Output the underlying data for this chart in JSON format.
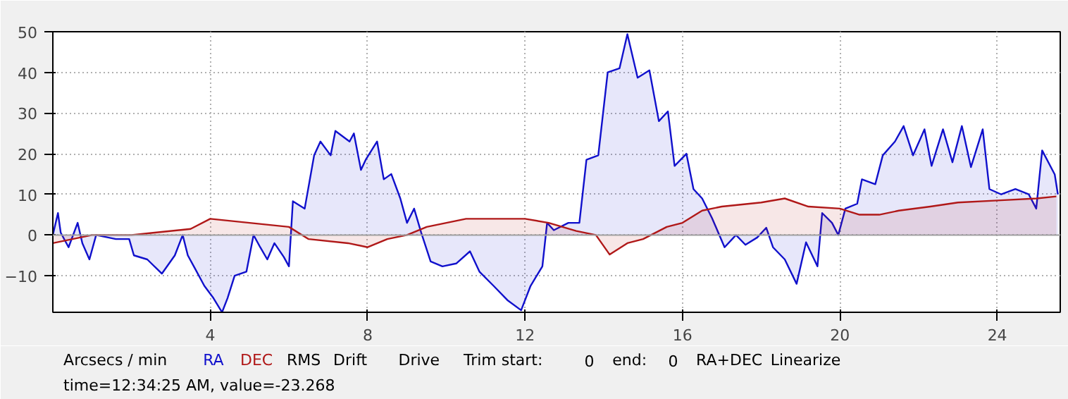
{
  "chart_data": {
    "type": "area",
    "xlim": [
      0,
      25.6
    ],
    "ylim": [
      -19,
      50
    ],
    "xticks": [
      4,
      8,
      12,
      16,
      20,
      24
    ],
    "yticks": [
      -10,
      0,
      10,
      20,
      30,
      40,
      50
    ],
    "grid": true,
    "ref_lines": [
      {
        "axis": "y",
        "value": 0,
        "label": null,
        "color": "#a0a0a0"
      }
    ],
    "series": [
      {
        "name": "RA",
        "color": "#1010cc",
        "x": [
          0,
          0.13,
          0.2,
          0.4,
          0.63,
          0.75,
          0.93,
          1.1,
          1.6,
          1.94,
          2.06,
          2.4,
          2.77,
          3.1,
          3.3,
          3.43,
          3.6,
          3.85,
          4.08,
          4.3,
          4.44,
          4.62,
          4.92,
          5.1,
          5.27,
          5.45,
          5.63,
          5.87,
          6,
          6.1,
          6.4,
          6.64,
          6.8,
          7.06,
          7.18,
          7.54,
          7.65,
          7.83,
          7.95,
          8.24,
          8.41,
          8.6,
          8.83,
          9,
          9.18,
          9.36,
          9.6,
          9.9,
          10.25,
          10.6,
          10.84,
          11.2,
          11.55,
          11.9,
          12.14,
          12.44,
          12.56,
          12.73,
          13.1,
          13.38,
          13.56,
          13.86,
          14.1,
          14.4,
          14.6,
          14.86,
          15.16,
          15.4,
          15.63,
          15.8,
          16.1,
          16.28,
          16.5,
          16.75,
          17.07,
          17.36,
          17.6,
          17.9,
          18.13,
          18.3,
          18.6,
          18.9,
          19.14,
          19.43,
          19.55,
          19.8,
          19.96,
          20.14,
          20.44,
          20.56,
          20.9,
          21.09,
          21.4,
          21.62,
          21.86,
          22.15,
          22.33,
          22.62,
          22.86,
          23.1,
          23.33,
          23.63,
          23.8,
          24.1,
          24.46,
          24.8,
          24.99,
          25.14,
          25.46,
          25.54
        ],
        "values": [
          0,
          5.4,
          0.6,
          -3,
          3,
          -2,
          -6,
          0,
          -1,
          -1,
          -5,
          -6,
          -9.5,
          -5,
          0,
          -5,
          -8,
          -12.5,
          -15.5,
          -19,
          -15.5,
          -10,
          -9,
          0,
          -3,
          -6,
          -2,
          -5.4,
          -7.7,
          8.3,
          6.5,
          19.6,
          23,
          19.6,
          25.6,
          23,
          25,
          16,
          18.5,
          23,
          13.7,
          15,
          9,
          3,
          6.5,
          0.6,
          -6.5,
          -7.7,
          -7,
          -4,
          -9,
          -12.5,
          -16,
          -18.5,
          -12.5,
          -7.7,
          3,
          1.2,
          3,
          3,
          18.5,
          19.6,
          40,
          41,
          49.4,
          38.7,
          40.5,
          28,
          30.4,
          17,
          20,
          11.3,
          9,
          4.2,
          -3,
          0,
          -2.4,
          -0.6,
          1.8,
          -3,
          -6,
          -12,
          -1.8,
          -7.7,
          5.4,
          3,
          0,
          6.5,
          7.7,
          13.7,
          12.5,
          19.6,
          23,
          26.8,
          19.6,
          26,
          17,
          26,
          17.9,
          26.8,
          16.7,
          26,
          11.3,
          10,
          11.3,
          10,
          6.5,
          20.8,
          14.9,
          10
        ]
      },
      {
        "name": "DEC",
        "color": "#b01818",
        "x": [
          0,
          1,
          2,
          2.5,
          3.5,
          4,
          5,
          6,
          6.5,
          7.5,
          8,
          8.5,
          9,
          9.5,
          10,
          10.5,
          11,
          12,
          12.6,
          13.3,
          13.8,
          14.15,
          14.6,
          15,
          15.6,
          16,
          16.5,
          17,
          18,
          18.6,
          19.2,
          20,
          20.5,
          21,
          21.5,
          22.3,
          23,
          24,
          25,
          25.5
        ],
        "values": [
          -2,
          0,
          0,
          0.5,
          1.5,
          4,
          3,
          2,
          -1,
          -2,
          -3,
          -1,
          0,
          2,
          3,
          4,
          4,
          4,
          3,
          1,
          0,
          -4.8,
          -2,
          -1,
          2,
          3,
          6,
          7,
          8,
          9,
          7,
          6.5,
          5,
          5,
          6,
          7,
          8,
          8.5,
          9,
          9.5
        ]
      }
    ],
    "annotations": [
      "Arcsecs / min",
      "RMS",
      "Drift",
      "Drive",
      "Trim start:",
      "0",
      "end:",
      "0",
      "RA+DEC",
      "Linearize",
      "time=12:34:25 AM, value=-23.268"
    ]
  }
}
